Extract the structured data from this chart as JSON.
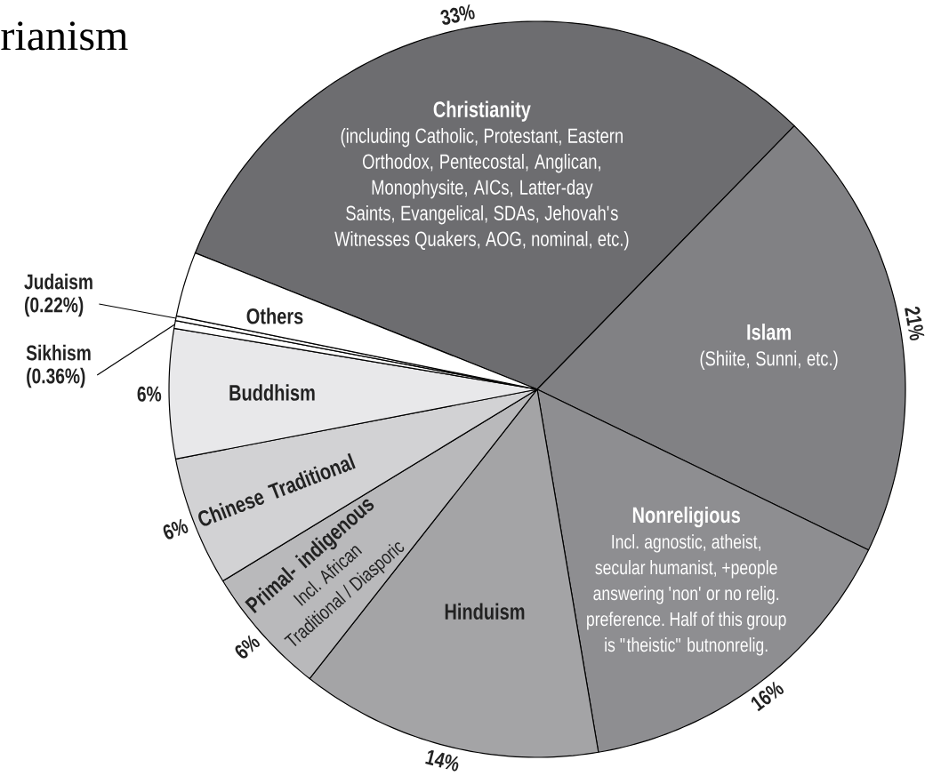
{
  "chart_data": {
    "type": "pie",
    "title": "rianism",
    "categories": [
      "Christianity",
      "Islam",
      "Nonreligious",
      "Hinduism",
      "Primal- indigenous",
      "Chinese Traditional",
      "Buddhism",
      "Sikhism",
      "Judaism",
      "Others"
    ],
    "values": [
      33,
      21,
      16,
      14,
      6,
      6,
      6,
      0.36,
      0.22,
      3
    ],
    "colors": [
      "#6d6d70",
      "#818184",
      "#8e8e91",
      "#a4a4a6",
      "#b9b9bb",
      "#d2d2d4",
      "#e8e8ea",
      "#ffffff",
      "#ffffff",
      "#ffffff"
    ],
    "value_labels": [
      "33%",
      "21%",
      "16%",
      "14%",
      "6%",
      "6%",
      "6%",
      "(0.36%)",
      "(0.22%)",
      null
    ],
    "annotations": [
      "(including Catholic, Protestant, Eastern Orthodox, Pentecostal, Anglican, Monophysite, AICs, Latter-day Saints, Evangelical, SDAs, Jehovah's Witnesses Quakers, AOG, nominal, etc.)",
      "(Shiite, Sunni, etc.)",
      "Incl. agnostic, atheist, secular humanist, +people answering 'non' or no relig. preference. Half of this group is \"theistic\" butnonrelig.",
      "Incl. African Traditional / Diasporic"
    ]
  }
}
